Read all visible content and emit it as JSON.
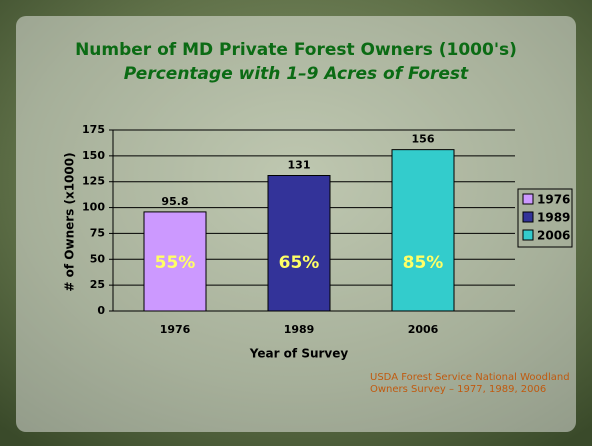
{
  "chart_data": {
    "type": "bar",
    "title": "Number of MD Private Forest Owners (1000's)",
    "subtitle": "Percentage with 1–9 Acres of Forest",
    "y_label": "# of Owners (x1000)",
    "x_label": "Year of Survey",
    "categories": [
      "1976",
      "1989",
      "2006"
    ],
    "values": [
      95.8,
      131,
      156
    ],
    "colors": [
      "#cc99ff",
      "#333399",
      "#33cccc"
    ],
    "bar_annotations": [
      "55%",
      "65%",
      "85%"
    ],
    "ylim": [
      0,
      175
    ],
    "yticks": [
      0,
      25,
      50,
      75,
      100,
      125,
      150,
      175
    ],
    "grid": true,
    "legend": "right",
    "source": "USDA Forest Service National Woodland Owners Survey – 1977, 1989, 2006"
  }
}
